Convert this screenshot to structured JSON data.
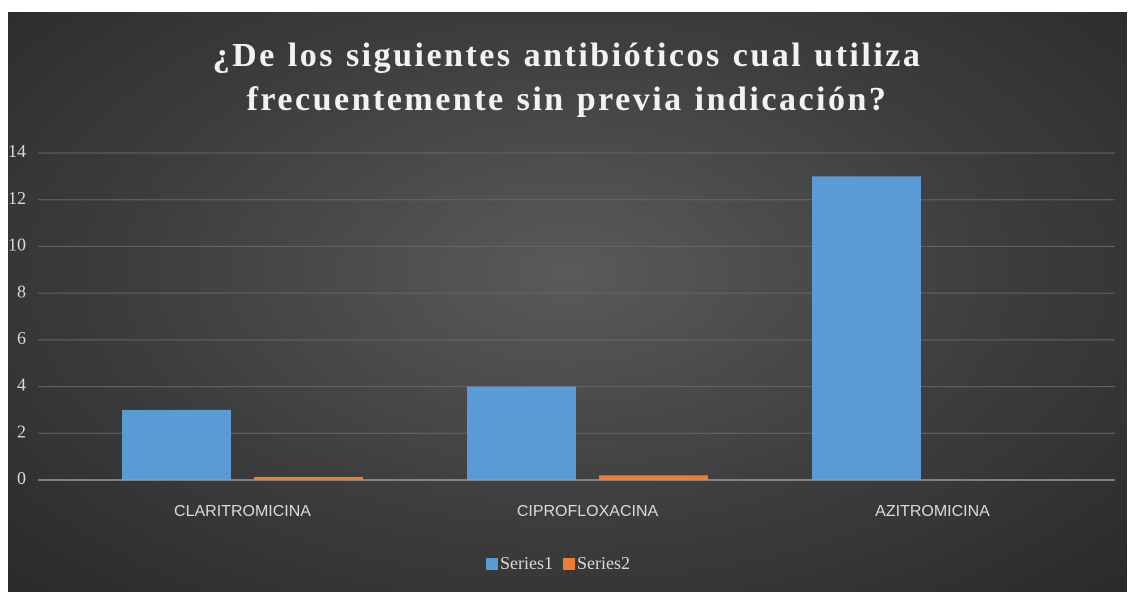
{
  "chart_data": {
    "type": "bar",
    "title": "¿De los siguientes antibióticos cual utiliza frecuentemente sin previa indicación?",
    "categories": [
      "CLARITROMICINA",
      "CIPROFLOXACINA",
      "AZITROMICINA"
    ],
    "series": [
      {
        "name": "Series1",
        "color": "#5b9bd5",
        "values": [
          3,
          4,
          13
        ]
      },
      {
        "name": "Series2",
        "color": "#ed7d31",
        "values": [
          0.13,
          0.2,
          0
        ]
      }
    ],
    "ylim": [
      0,
      14
    ],
    "yticks": [
      0,
      2,
      4,
      6,
      8,
      10,
      12,
      14
    ],
    "grid": true,
    "legend": "bottom"
  }
}
